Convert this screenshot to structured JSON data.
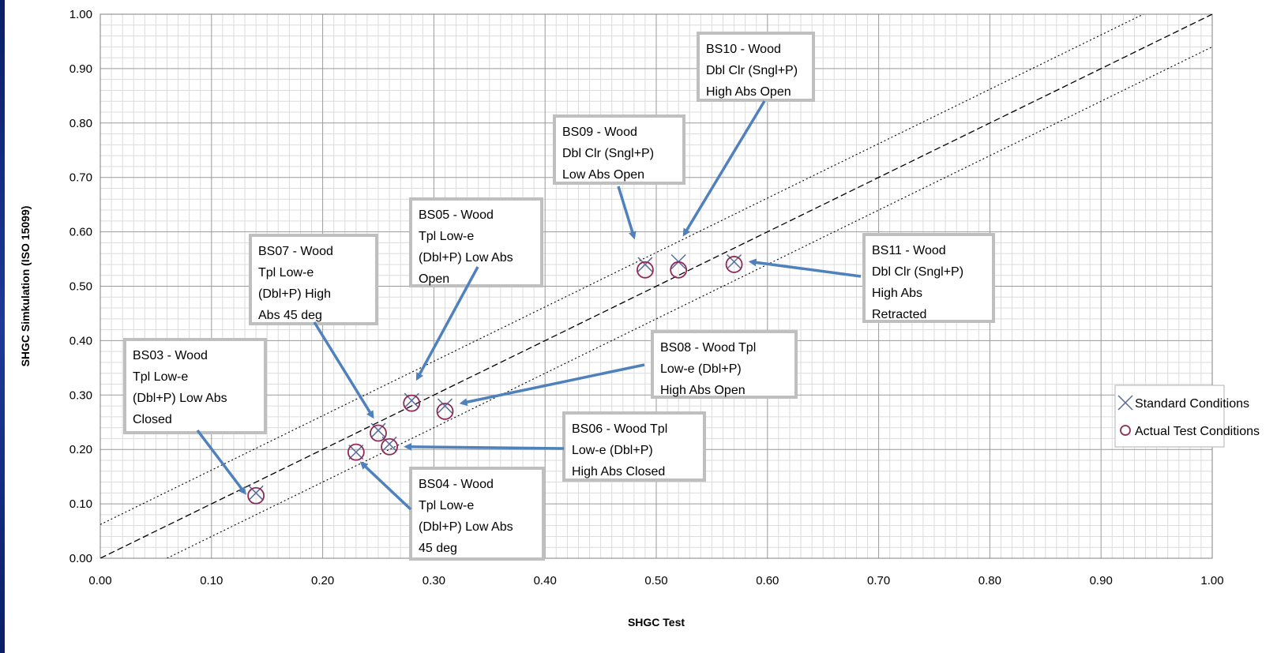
{
  "chart_data": {
    "type": "scatter",
    "title": "",
    "xlabel": "SHGC Test",
    "ylabel": "SHGC Simkulation (ISO 15099)",
    "xlim": [
      0,
      1
    ],
    "ylim": [
      0,
      1
    ],
    "x_ticks": [
      "0.00",
      "0.10",
      "0.20",
      "0.30",
      "0.40",
      "0.50",
      "0.60",
      "0.70",
      "0.80",
      "0.90",
      "1.00"
    ],
    "y_ticks": [
      "0.00",
      "0.10",
      "0.20",
      "0.30",
      "0.40",
      "0.50",
      "0.60",
      "0.70",
      "0.80",
      "0.90",
      "1.00"
    ],
    "grid": true,
    "legend_position": "right",
    "reference_lines": [
      {
        "style": "dash",
        "points": [
          [
            0,
            0
          ],
          [
            1,
            1
          ]
        ]
      },
      {
        "style": "dot",
        "points": [
          [
            0,
            0.062
          ],
          [
            1,
            1.062
          ]
        ]
      },
      {
        "style": "dot",
        "points": [
          [
            0.06,
            0
          ],
          [
            1,
            0.94
          ]
        ]
      }
    ],
    "series": [
      {
        "name": "Standard Conditions",
        "marker": "x",
        "color": "#5a6a9a",
        "points": [
          [
            0.14,
            0.12
          ],
          [
            0.23,
            0.195
          ],
          [
            0.25,
            0.235
          ],
          [
            0.26,
            0.21
          ],
          [
            0.28,
            0.29
          ],
          [
            0.31,
            0.28
          ],
          [
            0.49,
            0.54
          ],
          [
            0.52,
            0.545
          ],
          [
            0.57,
            0.545
          ]
        ]
      },
      {
        "name": "Actual Test Conditions",
        "marker": "circle",
        "color": "#8e2a55",
        "points": [
          [
            0.14,
            0.115
          ],
          [
            0.23,
            0.195
          ],
          [
            0.25,
            0.23
          ],
          [
            0.26,
            0.205
          ],
          [
            0.28,
            0.285
          ],
          [
            0.31,
            0.27
          ],
          [
            0.49,
            0.53
          ],
          [
            0.52,
            0.53
          ],
          [
            0.57,
            0.54
          ]
        ]
      }
    ],
    "annotations": [
      {
        "lines": [
          "BS03 - Wood",
          "Tpl Low-e",
          "(Dbl+P) Low Abs",
          "Closed"
        ],
        "point": [
          0.13,
          0.12
        ]
      },
      {
        "lines": [
          "BS04 - Wood",
          "Tpl Low-e",
          "(Dbl+P) Low Abs",
          "45 deg"
        ],
        "point": [
          0.235,
          0.175
        ]
      },
      {
        "lines": [
          "BS05 - Wood",
          "Tpl Low-e",
          "(Dbl+P) Low Abs",
          "Open"
        ],
        "point": [
          0.285,
          0.33
        ]
      },
      {
        "lines": [
          "BS06 - Wood Tpl",
          "Low-e (Dbl+P)",
          "High Abs Closed"
        ],
        "point": [
          0.275,
          0.205
        ]
      },
      {
        "lines": [
          "BS07 - Wood",
          "Tpl Low-e",
          "(Dbl+P) High",
          "Abs 45 deg"
        ],
        "point": [
          0.245,
          0.26
        ]
      },
      {
        "lines": [
          "BS08 - Wood Tpl",
          "Low-e (Dbl+P)",
          "High Abs Open"
        ],
        "point": [
          0.325,
          0.285
        ]
      },
      {
        "lines": [
          "BS09 - Wood",
          "Dbl Clr (Sngl+P)",
          "Low Abs Open"
        ],
        "point": [
          0.48,
          0.59
        ]
      },
      {
        "lines": [
          "BS10 - Wood",
          "Dbl Clr (Sngl+P)",
          "High Abs Open"
        ],
        "point": [
          0.525,
          0.595
        ]
      },
      {
        "lines": [
          "BS11 - Wood",
          "Dbl Clr (Sngl+P)",
          "High Abs",
          "Retracted"
        ],
        "point": [
          0.585,
          0.545
        ]
      }
    ]
  }
}
